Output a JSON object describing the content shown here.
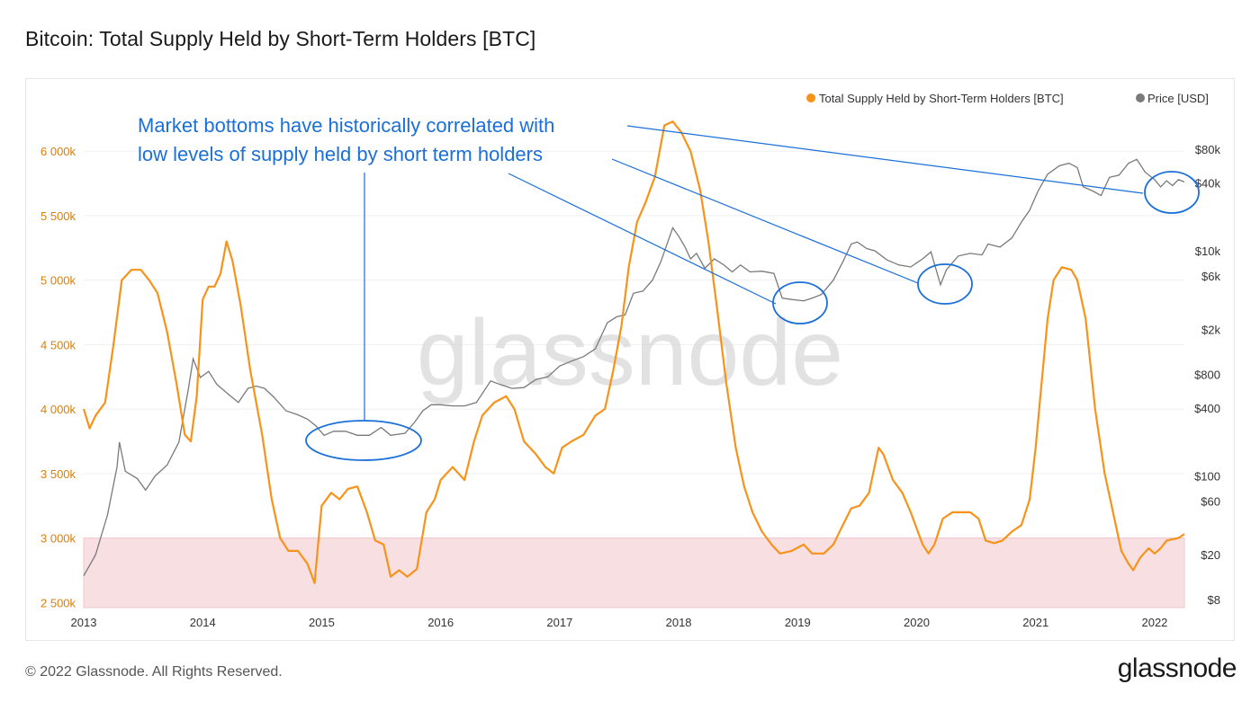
{
  "header": {
    "title": "Bitcoin: Total Supply Held by Short-Term Holders [BTC]"
  },
  "footer": {
    "copyright": "© 2022 Glassnode. All Rights Reserved.",
    "logo_text": "glassnode"
  },
  "watermark": "glassnode",
  "colors": {
    "supply": "#f7931a",
    "price": "#7a7a7a",
    "annotation": "#1a6fd8",
    "band": "#f8dfe1",
    "left_axis": "#d67f10"
  },
  "chart_data": {
    "type": "line",
    "title": "Bitcoin: Total Supply Held by Short-Term Holders [BTC]",
    "legend": {
      "placement": "top-right",
      "entries": [
        "Total Supply Held by Short-Term Holders [BTC]",
        "Price [USD]"
      ]
    },
    "x_axis": {
      "ticks": [
        "2013",
        "2014",
        "2015",
        "2016",
        "2017",
        "2018",
        "2019",
        "2020",
        "2021",
        "2022"
      ],
      "range": [
        2013.0,
        2022.25
      ]
    },
    "y_left": {
      "ticks": [
        "2 500k",
        "3 000k",
        "3 500k",
        "4 000k",
        "4 500k",
        "5 000k",
        "5 500k",
        "6 000k"
      ],
      "tick_values": [
        2500000,
        3000000,
        3500000,
        4000000,
        4500000,
        5000000,
        5500000,
        6000000
      ],
      "range": [
        2460000,
        6350000
      ]
    },
    "y_right": {
      "scale": "log",
      "ticks": [
        "$8",
        "$20",
        "$60",
        "$100",
        "$400",
        "$800",
        "$2k",
        "$6k",
        "$10k",
        "$40k",
        "$80k"
      ],
      "tick_values": [
        8,
        20,
        60,
        100,
        400,
        800,
        2000,
        6000,
        10000,
        40000,
        80000
      ]
    },
    "band": {
      "from": 2460000,
      "to": 3000000
    },
    "series": [
      {
        "name": "Total Supply Held by Short-Term Holders [BTC]",
        "axis": "left",
        "points": [
          [
            2013.0,
            4000000
          ],
          [
            2013.05,
            3850000
          ],
          [
            2013.1,
            3950000
          ],
          [
            2013.18,
            4050000
          ],
          [
            2013.25,
            4500000
          ],
          [
            2013.32,
            5000000
          ],
          [
            2013.4,
            5080000
          ],
          [
            2013.48,
            5080000
          ],
          [
            2013.55,
            5000000
          ],
          [
            2013.62,
            4900000
          ],
          [
            2013.7,
            4600000
          ],
          [
            2013.78,
            4200000
          ],
          [
            2013.85,
            3800000
          ],
          [
            2013.9,
            3750000
          ],
          [
            2013.95,
            4100000
          ],
          [
            2014.0,
            4850000
          ],
          [
            2014.05,
            4950000
          ],
          [
            2014.1,
            4950000
          ],
          [
            2014.15,
            5050000
          ],
          [
            2014.2,
            5300000
          ],
          [
            2014.25,
            5150000
          ],
          [
            2014.32,
            4800000
          ],
          [
            2014.4,
            4300000
          ],
          [
            2014.5,
            3800000
          ],
          [
            2014.58,
            3300000
          ],
          [
            2014.65,
            3000000
          ],
          [
            2014.72,
            2900000
          ],
          [
            2014.8,
            2900000
          ],
          [
            2014.88,
            2800000
          ],
          [
            2014.94,
            2650000
          ],
          [
            2015.0,
            3250000
          ],
          [
            2015.08,
            3350000
          ],
          [
            2015.15,
            3300000
          ],
          [
            2015.22,
            3380000
          ],
          [
            2015.3,
            3400000
          ],
          [
            2015.38,
            3200000
          ],
          [
            2015.45,
            2980000
          ],
          [
            2015.52,
            2950000
          ],
          [
            2015.58,
            2700000
          ],
          [
            2015.65,
            2750000
          ],
          [
            2015.72,
            2700000
          ],
          [
            2015.8,
            2760000
          ],
          [
            2015.88,
            3200000
          ],
          [
            2015.95,
            3300000
          ],
          [
            2016.0,
            3450000
          ],
          [
            2016.1,
            3550000
          ],
          [
            2016.2,
            3450000
          ],
          [
            2016.28,
            3750000
          ],
          [
            2016.35,
            3950000
          ],
          [
            2016.45,
            4050000
          ],
          [
            2016.55,
            4100000
          ],
          [
            2016.62,
            4000000
          ],
          [
            2016.7,
            3750000
          ],
          [
            2016.8,
            3650000
          ],
          [
            2016.88,
            3550000
          ],
          [
            2016.95,
            3500000
          ],
          [
            2017.02,
            3700000
          ],
          [
            2017.1,
            3750000
          ],
          [
            2017.2,
            3800000
          ],
          [
            2017.3,
            3950000
          ],
          [
            2017.38,
            4000000
          ],
          [
            2017.45,
            4300000
          ],
          [
            2017.52,
            4650000
          ],
          [
            2017.58,
            5100000
          ],
          [
            2017.65,
            5450000
          ],
          [
            2017.72,
            5600000
          ],
          [
            2017.8,
            5800000
          ],
          [
            2017.88,
            6200000
          ],
          [
            2017.95,
            6230000
          ],
          [
            2018.02,
            6150000
          ],
          [
            2018.1,
            6000000
          ],
          [
            2018.18,
            5700000
          ],
          [
            2018.25,
            5300000
          ],
          [
            2018.32,
            4800000
          ],
          [
            2018.4,
            4200000
          ],
          [
            2018.48,
            3700000
          ],
          [
            2018.55,
            3400000
          ],
          [
            2018.62,
            3200000
          ],
          [
            2018.7,
            3050000
          ],
          [
            2018.78,
            2950000
          ],
          [
            2018.85,
            2880000
          ],
          [
            2018.95,
            2900000
          ],
          [
            2019.05,
            2950000
          ],
          [
            2019.12,
            2880000
          ],
          [
            2019.22,
            2880000
          ],
          [
            2019.3,
            2950000
          ],
          [
            2019.38,
            3100000
          ],
          [
            2019.45,
            3230000
          ],
          [
            2019.52,
            3250000
          ],
          [
            2019.6,
            3350000
          ],
          [
            2019.68,
            3700000
          ],
          [
            2019.72,
            3650000
          ],
          [
            2019.8,
            3450000
          ],
          [
            2019.88,
            3350000
          ],
          [
            2019.95,
            3200000
          ],
          [
            2020.05,
            2950000
          ],
          [
            2020.1,
            2880000
          ],
          [
            2020.15,
            2950000
          ],
          [
            2020.22,
            3150000
          ],
          [
            2020.3,
            3200000
          ],
          [
            2020.38,
            3200000
          ],
          [
            2020.45,
            3200000
          ],
          [
            2020.52,
            3150000
          ],
          [
            2020.58,
            2980000
          ],
          [
            2020.65,
            2960000
          ],
          [
            2020.72,
            2980000
          ],
          [
            2020.8,
            3050000
          ],
          [
            2020.88,
            3100000
          ],
          [
            2020.95,
            3300000
          ],
          [
            2021.0,
            3700000
          ],
          [
            2021.05,
            4200000
          ],
          [
            2021.1,
            4700000
          ],
          [
            2021.15,
            5000000
          ],
          [
            2021.22,
            5100000
          ],
          [
            2021.3,
            5080000
          ],
          [
            2021.35,
            5000000
          ],
          [
            2021.42,
            4700000
          ],
          [
            2021.5,
            4000000
          ],
          [
            2021.58,
            3500000
          ],
          [
            2021.65,
            3200000
          ],
          [
            2021.72,
            2900000
          ],
          [
            2021.78,
            2800000
          ],
          [
            2021.82,
            2750000
          ],
          [
            2021.88,
            2850000
          ],
          [
            2021.95,
            2920000
          ],
          [
            2022.0,
            2880000
          ],
          [
            2022.05,
            2920000
          ],
          [
            2022.1,
            2980000
          ],
          [
            2022.2,
            3000000
          ],
          [
            2022.25,
            3030000
          ]
        ]
      },
      {
        "name": "Price [USD]",
        "axis": "right",
        "points": [
          [
            2013.0,
            13
          ],
          [
            2013.1,
            20
          ],
          [
            2013.2,
            45
          ],
          [
            2013.28,
            120
          ],
          [
            2013.3,
            200
          ],
          [
            2013.35,
            110
          ],
          [
            2013.45,
            95
          ],
          [
            2013.52,
            75
          ],
          [
            2013.6,
            100
          ],
          [
            2013.7,
            125
          ],
          [
            2013.8,
            200
          ],
          [
            2013.88,
            600
          ],
          [
            2013.92,
            1100
          ],
          [
            2013.98,
            750
          ],
          [
            2014.05,
            850
          ],
          [
            2014.12,
            650
          ],
          [
            2014.2,
            550
          ],
          [
            2014.3,
            450
          ],
          [
            2014.38,
            600
          ],
          [
            2014.45,
            630
          ],
          [
            2014.52,
            600
          ],
          [
            2014.6,
            500
          ],
          [
            2014.7,
            380
          ],
          [
            2014.8,
            350
          ],
          [
            2014.88,
            320
          ],
          [
            2014.95,
            280
          ],
          [
            2015.02,
            230
          ],
          [
            2015.1,
            250
          ],
          [
            2015.2,
            250
          ],
          [
            2015.3,
            230
          ],
          [
            2015.4,
            230
          ],
          [
            2015.5,
            270
          ],
          [
            2015.58,
            230
          ],
          [
            2015.7,
            240
          ],
          [
            2015.78,
            300
          ],
          [
            2015.85,
            380
          ],
          [
            2015.92,
            430
          ],
          [
            2016.0,
            430
          ],
          [
            2016.1,
            420
          ],
          [
            2016.2,
            420
          ],
          [
            2016.3,
            450
          ],
          [
            2016.42,
            700
          ],
          [
            2016.5,
            650
          ],
          [
            2016.6,
            600
          ],
          [
            2016.7,
            610
          ],
          [
            2016.8,
            720
          ],
          [
            2016.9,
            760
          ],
          [
            2017.0,
            950
          ],
          [
            2017.1,
            1050
          ],
          [
            2017.2,
            1150
          ],
          [
            2017.3,
            1350
          ],
          [
            2017.4,
            2300
          ],
          [
            2017.48,
            2600
          ],
          [
            2017.55,
            2700
          ],
          [
            2017.62,
            4200
          ],
          [
            2017.7,
            4400
          ],
          [
            2017.78,
            5500
          ],
          [
            2017.85,
            8000
          ],
          [
            2017.95,
            16000
          ],
          [
            2018.0,
            13500
          ],
          [
            2018.05,
            11000
          ],
          [
            2018.1,
            8500
          ],
          [
            2018.15,
            9500
          ],
          [
            2018.22,
            7000
          ],
          [
            2018.3,
            8500
          ],
          [
            2018.38,
            7500
          ],
          [
            2018.45,
            6500
          ],
          [
            2018.52,
            7500
          ],
          [
            2018.6,
            6500
          ],
          [
            2018.7,
            6600
          ],
          [
            2018.8,
            6300
          ],
          [
            2018.87,
            3800
          ],
          [
            2018.95,
            3700
          ],
          [
            2019.05,
            3600
          ],
          [
            2019.12,
            3800
          ],
          [
            2019.2,
            4100
          ],
          [
            2019.3,
            5500
          ],
          [
            2019.38,
            8000
          ],
          [
            2019.45,
            11500
          ],
          [
            2019.5,
            12000
          ],
          [
            2019.58,
            10500
          ],
          [
            2019.65,
            10000
          ],
          [
            2019.75,
            8300
          ],
          [
            2019.85,
            7500
          ],
          [
            2019.95,
            7200
          ],
          [
            2020.05,
            8500
          ],
          [
            2020.12,
            9800
          ],
          [
            2020.2,
            5000
          ],
          [
            2020.25,
            6800
          ],
          [
            2020.35,
            9000
          ],
          [
            2020.45,
            9500
          ],
          [
            2020.55,
            9200
          ],
          [
            2020.6,
            11500
          ],
          [
            2020.7,
            10800
          ],
          [
            2020.8,
            13000
          ],
          [
            2020.88,
            18000
          ],
          [
            2020.95,
            23000
          ],
          [
            2021.02,
            34000
          ],
          [
            2021.1,
            48000
          ],
          [
            2021.2,
            57000
          ],
          [
            2021.28,
            60000
          ],
          [
            2021.35,
            55000
          ],
          [
            2021.4,
            37000
          ],
          [
            2021.48,
            34000
          ],
          [
            2021.55,
            31000
          ],
          [
            2021.62,
            45000
          ],
          [
            2021.7,
            47000
          ],
          [
            2021.78,
            60000
          ],
          [
            2021.85,
            65000
          ],
          [
            2021.92,
            50000
          ],
          [
            2022.0,
            43000
          ],
          [
            2022.05,
            37000
          ],
          [
            2022.1,
            42000
          ],
          [
            2022.15,
            38000
          ],
          [
            2022.2,
            43000
          ],
          [
            2022.25,
            41000
          ]
        ]
      }
    ],
    "annotations": [
      {
        "text_lines": [
          "Market bottoms have historically correlated with",
          "low levels of supply held by short term holders"
        ]
      }
    ]
  }
}
